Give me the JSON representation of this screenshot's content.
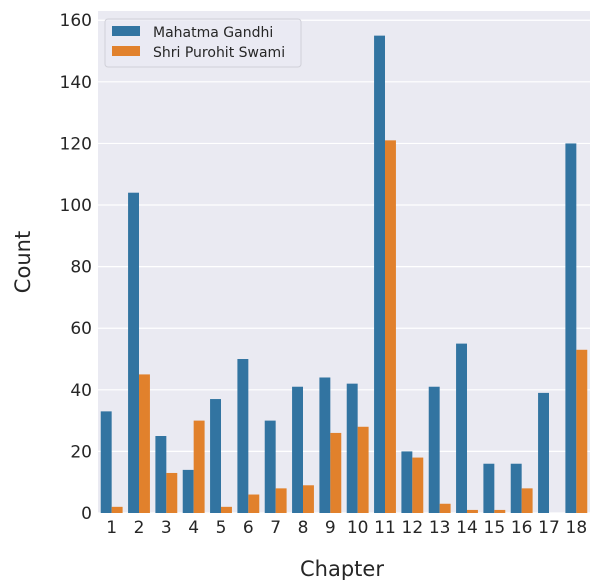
{
  "chart_data": {
    "type": "bar",
    "xlabel": "Chapter",
    "ylabel": "Count",
    "categories": [
      "1",
      "2",
      "3",
      "4",
      "5",
      "6",
      "7",
      "8",
      "9",
      "10",
      "11",
      "12",
      "13",
      "14",
      "15",
      "16",
      "17",
      "18"
    ],
    "series": [
      {
        "name": "Mahatma Gandhi",
        "color": "#3274a1",
        "values": [
          33,
          104,
          25,
          14,
          37,
          50,
          30,
          41,
          44,
          42,
          155,
          20,
          41,
          55,
          16,
          16,
          39,
          120
        ]
      },
      {
        "name": "Shri Purohit Swami",
        "color": "#e1812c",
        "values": [
          2,
          45,
          13,
          30,
          2,
          6,
          8,
          9,
          26,
          28,
          121,
          18,
          3,
          1,
          1,
          8,
          0,
          53
        ]
      }
    ],
    "ylim": [
      0,
      163
    ],
    "yticks": [
      0,
      20,
      40,
      60,
      80,
      100,
      120,
      140,
      160
    ],
    "grid": true,
    "legend_position": "upper-left",
    "colors": {
      "background": "#eaeaf2",
      "grid": "#ffffff"
    }
  }
}
